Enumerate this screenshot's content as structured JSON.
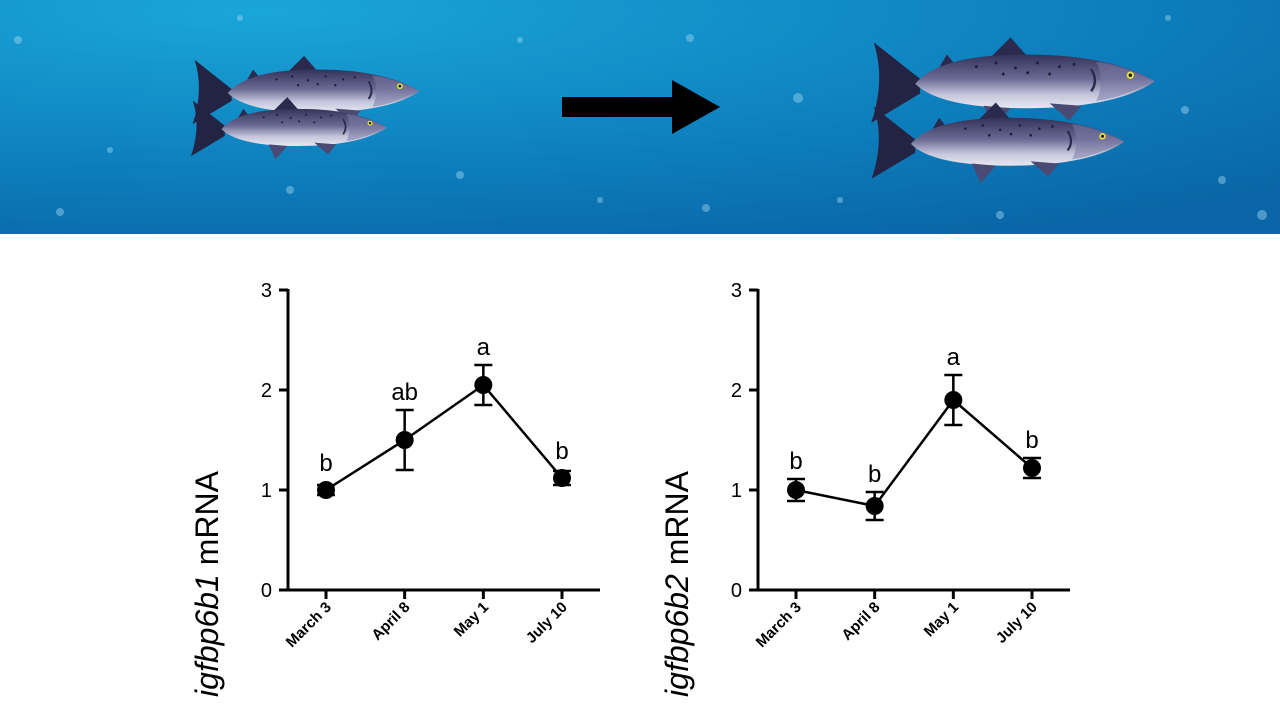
{
  "banner": {
    "background_color": "#0d79b8",
    "arrow_icon": "right-arrow-icon",
    "fish_icon": "salmon-icon"
  },
  "chart_data": [
    {
      "type": "line",
      "ylabel_gene": "igfbp6b1",
      "ylabel_suffix": " mRNA",
      "categories": [
        "March 3",
        "April 8",
        "May 1",
        "July 10"
      ],
      "values": [
        1.0,
        1.5,
        2.05,
        1.12
      ],
      "error": [
        0.05,
        0.3,
        0.2,
        0.07
      ],
      "significance": [
        "b",
        "ab",
        "a",
        "b"
      ],
      "ylim": [
        0,
        3
      ],
      "yticks": [
        "0",
        "1",
        "2",
        "3"
      ]
    },
    {
      "type": "line",
      "ylabel_gene": "igfbp6b2",
      "ylabel_suffix": " mRNA",
      "categories": [
        "March 3",
        "April 8",
        "May 1",
        "July 10"
      ],
      "values": [
        1.0,
        0.84,
        1.9,
        1.22
      ],
      "error": [
        0.11,
        0.14,
        0.25,
        0.1
      ],
      "significance": [
        "b",
        "b",
        "a",
        "b"
      ],
      "ylim": [
        0,
        3
      ],
      "yticks": [
        "0",
        "1",
        "2",
        "3"
      ]
    }
  ]
}
